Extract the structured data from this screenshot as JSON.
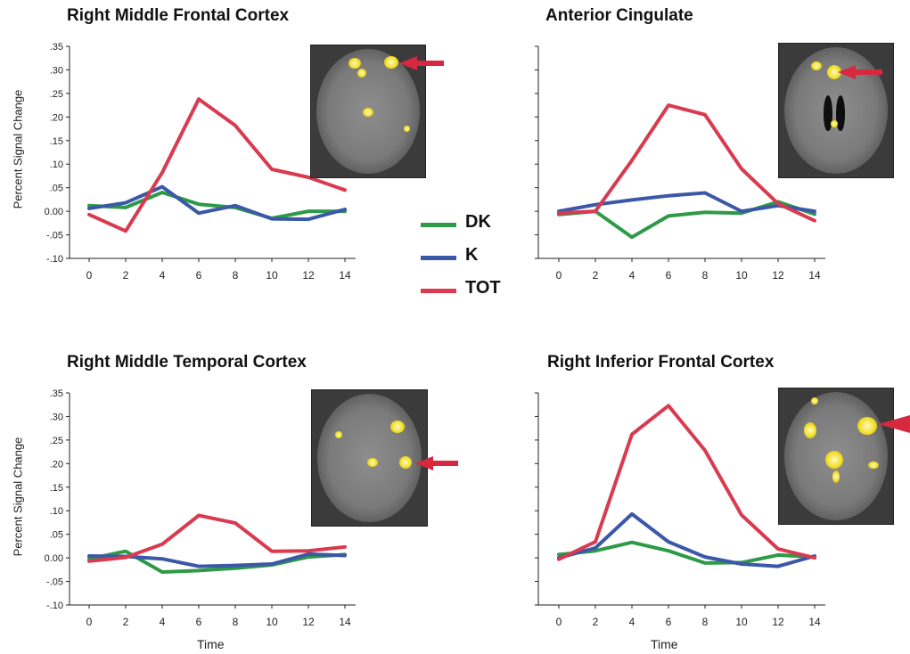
{
  "legend": [
    {
      "name": "DK",
      "color": "#2e9a47"
    },
    {
      "name": "K",
      "color": "#3b58a8"
    },
    {
      "name": "TOT",
      "color": "#d93a4f"
    }
  ],
  "arrow_color": "#d6283f",
  "chart_data": [
    {
      "type": "line",
      "title": "Right Middle Frontal Cortex",
      "ylabel": "Percent Signal Change",
      "xlabel": "",
      "x": [
        0,
        2,
        4,
        6,
        8,
        10,
        12,
        14
      ],
      "xticks": [
        "0",
        "2",
        "4",
        "6",
        "8",
        "10",
        "12",
        "14"
      ],
      "yticks": [
        ".35",
        ".30",
        ".25",
        ".20",
        ".15",
        ".10",
        ".05",
        "0.00",
        "-.05",
        "-.10"
      ],
      "ylim": [
        -0.1,
        0.35
      ],
      "series": [
        {
          "name": "DK",
          "values": [
            0.012,
            0.008,
            0.04,
            0.015,
            0.008,
            -0.015,
            0.0,
            0.0
          ]
        },
        {
          "name": "K",
          "values": [
            0.006,
            0.018,
            0.052,
            -0.004,
            0.012,
            -0.016,
            -0.017,
            0.004
          ]
        },
        {
          "name": "TOT",
          "values": [
            -0.007,
            -0.042,
            0.082,
            0.238,
            0.182,
            0.089,
            0.072,
            0.045
          ]
        }
      ]
    },
    {
      "type": "line",
      "title": "Anterior Cingulate",
      "ylabel": "",
      "xlabel": "",
      "x": [
        0,
        2,
        4,
        6,
        8,
        10,
        12,
        14
      ],
      "xticks": [
        "0",
        "2",
        "4",
        "6",
        "8",
        "10",
        "12",
        "14"
      ],
      "yticks": [],
      "ylim": [
        -0.1,
        0.35
      ],
      "series": [
        {
          "name": "DK",
          "values": [
            -0.007,
            0.0,
            -0.055,
            -0.01,
            -0.002,
            -0.004,
            0.02,
            -0.006
          ]
        },
        {
          "name": "K",
          "values": [
            0.0,
            0.014,
            0.024,
            0.033,
            0.039,
            0.0,
            0.012,
            0.0
          ]
        },
        {
          "name": "TOT",
          "values": [
            -0.004,
            0.0,
            0.108,
            0.225,
            0.205,
            0.09,
            0.016,
            -0.02
          ]
        }
      ]
    },
    {
      "type": "line",
      "title": "Right Middle Temporal Cortex",
      "ylabel": "Percent Signal Change",
      "xlabel": "Time",
      "x": [
        0,
        2,
        4,
        6,
        8,
        10,
        12,
        14
      ],
      "xticks": [
        "0",
        "2",
        "4",
        "6",
        "8",
        "10",
        "12",
        "14"
      ],
      "yticks": [
        ".35",
        ".30",
        ".25",
        ".20",
        ".15",
        ".10",
        ".05",
        "0.00",
        "-.05",
        "-.10"
      ],
      "ylim": [
        -0.1,
        0.35
      ],
      "series": [
        {
          "name": "DK",
          "values": [
            -0.002,
            0.014,
            -0.03,
            -0.027,
            -0.022,
            -0.015,
            0.002,
            0.007
          ]
        },
        {
          "name": "K",
          "values": [
            0.004,
            0.003,
            -0.002,
            -0.018,
            -0.016,
            -0.013,
            0.008,
            0.005
          ]
        },
        {
          "name": "TOT",
          "values": [
            -0.007,
            0.001,
            0.029,
            0.09,
            0.074,
            0.014,
            0.015,
            0.023
          ]
        }
      ]
    },
    {
      "type": "line",
      "title": "Right Inferior Frontal Cortex",
      "ylabel": "",
      "xlabel": "Time",
      "x": [
        0,
        2,
        4,
        6,
        8,
        10,
        12,
        14
      ],
      "xticks": [
        "0",
        "2",
        "4",
        "6",
        "8",
        "10",
        "12",
        "14"
      ],
      "yticks": [],
      "ylim": [
        -0.1,
        0.35
      ],
      "series": [
        {
          "name": "DK",
          "values": [
            0.007,
            0.015,
            0.033,
            0.015,
            -0.011,
            -0.01,
            0.006,
            0.002
          ]
        },
        {
          "name": "K",
          "values": [
            0.0,
            0.021,
            0.093,
            0.034,
            0.002,
            -0.013,
            -0.018,
            0.004
          ]
        },
        {
          "name": "TOT",
          "values": [
            -0.003,
            0.034,
            0.262,
            0.323,
            0.228,
            0.091,
            0.019,
            0.0
          ]
        }
      ]
    }
  ]
}
